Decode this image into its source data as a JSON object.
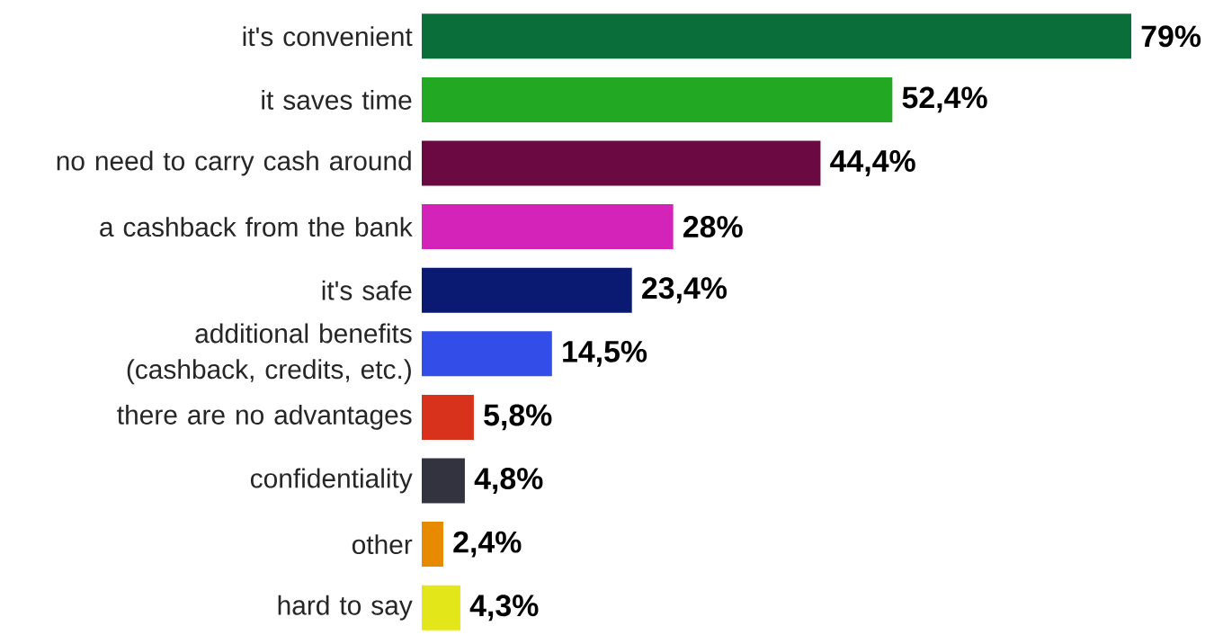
{
  "chart_data": {
    "type": "bar",
    "orientation": "horizontal",
    "categories": [
      "it's convenient",
      "it saves time",
      "no need to carry cash around",
      "a cashback from the bank",
      "it's safe",
      "additional benefits (cashback, credits, etc.)",
      "there are no advantages",
      "confidentiality",
      "other",
      "hard to say"
    ],
    "values": [
      79,
      52.4,
      44.4,
      28,
      23.4,
      14.5,
      5.8,
      4.8,
      2.4,
      4.3
    ],
    "colors": [
      "#0a6e3a",
      "#22a822",
      "#6b0a42",
      "#d423b8",
      "#0a1a72",
      "#334de8",
      "#d9321c",
      "#333340",
      "#e88a00",
      "#e3e619"
    ],
    "value_labels": [
      "79%",
      "52,4%",
      "44,4%",
      "28%",
      "23,4%",
      "14,5%",
      "5,8%",
      "4,8%",
      "2,4%",
      "4,3%"
    ]
  }
}
